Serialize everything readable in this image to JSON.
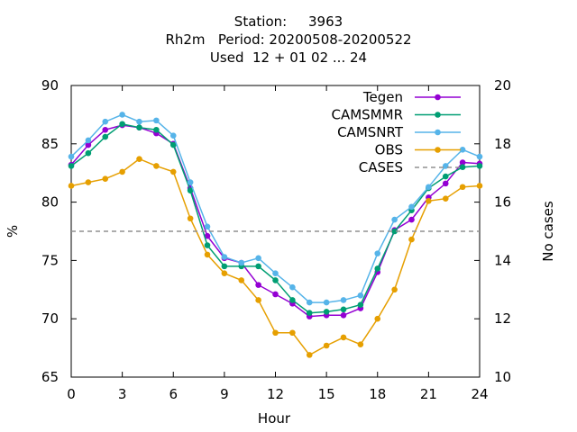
{
  "chart_data": {
    "type": "line",
    "title_lines": [
      "Station:     3963",
      "Rh2m   Period: 20200508-20200522",
      "Used  12 + 01 02 ... 24"
    ],
    "xlabel": "Hour",
    "ylabel": "%",
    "y2label": "No cases",
    "xlim": [
      0,
      24
    ],
    "ylim": [
      65,
      90
    ],
    "y2lim": [
      10,
      20
    ],
    "xticks": [
      0,
      3,
      6,
      9,
      12,
      15,
      18,
      21,
      24
    ],
    "yticks": [
      65,
      70,
      75,
      80,
      85,
      90
    ],
    "y2ticks": [
      10,
      12,
      14,
      16,
      18,
      20
    ],
    "grid": false,
    "legend_position": "top-right",
    "x": [
      0,
      1,
      2,
      3,
      4,
      5,
      6,
      7,
      8,
      9,
      10,
      11,
      12,
      13,
      14,
      15,
      16,
      17,
      18,
      19,
      20,
      21,
      22,
      23,
      24
    ],
    "series": [
      {
        "name": "Tegen",
        "color": "#9400d3",
        "marker": "circle",
        "values": [
          83.2,
          84.9,
          86.2,
          86.6,
          86.4,
          85.9,
          85.0,
          81.2,
          77.1,
          75.2,
          74.8,
          72.9,
          72.1,
          71.3,
          70.2,
          70.3,
          70.3,
          70.9,
          74.0,
          77.6,
          78.5,
          80.4,
          81.6,
          83.4,
          83.3
        ]
      },
      {
        "name": "CAMSMMR",
        "color": "#009e73",
        "marker": "circle",
        "values": [
          83.1,
          84.2,
          85.6,
          86.7,
          86.4,
          86.2,
          84.9,
          81.0,
          76.3,
          74.5,
          74.5,
          74.5,
          73.3,
          71.6,
          70.5,
          70.6,
          70.8,
          71.2,
          74.3,
          77.5,
          79.3,
          81.2,
          82.2,
          83.0,
          83.1
        ]
      },
      {
        "name": "CAMSNRT",
        "color": "#56b4e9",
        "marker": "circle",
        "values": [
          83.9,
          85.3,
          86.9,
          87.5,
          86.9,
          87.0,
          85.7,
          81.7,
          77.9,
          75.3,
          74.8,
          75.2,
          73.9,
          72.7,
          71.4,
          71.4,
          71.6,
          72.0,
          75.6,
          78.5,
          79.6,
          81.3,
          83.1,
          84.5,
          83.9
        ]
      },
      {
        "name": "OBS",
        "color": "#e69f00",
        "marker": "circle",
        "values": [
          81.4,
          81.7,
          82.0,
          82.6,
          83.7,
          83.1,
          82.6,
          78.6,
          75.5,
          73.9,
          73.3,
          71.6,
          68.8,
          68.8,
          66.9,
          67.7,
          68.4,
          67.8,
          70.0,
          72.5,
          76.8,
          80.1,
          80.3,
          81.3,
          81.4
        ]
      },
      {
        "name": "CASES",
        "color": "#909090",
        "axis": "y2",
        "style": "dashed",
        "values": [
          15,
          15,
          15,
          15,
          15,
          15,
          15,
          15,
          15,
          15,
          15,
          15,
          15,
          15,
          15,
          15,
          15,
          15,
          15,
          15,
          15,
          15,
          15,
          15,
          15
        ]
      }
    ]
  }
}
